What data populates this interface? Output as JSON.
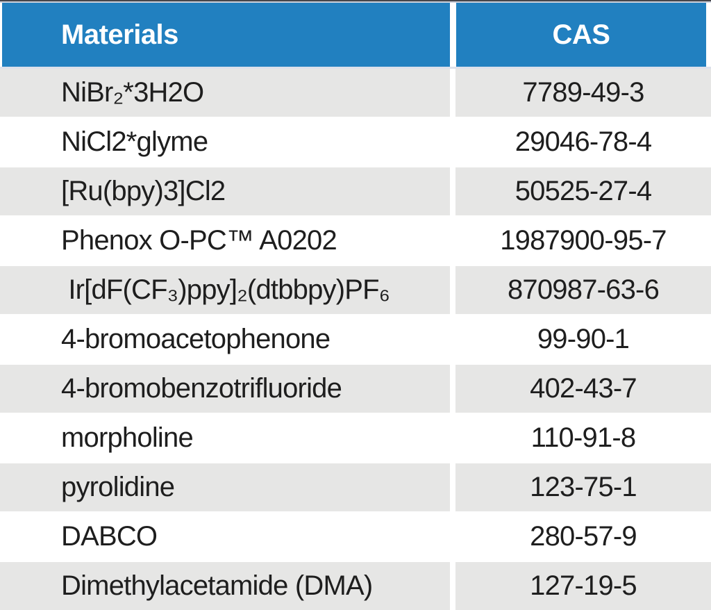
{
  "table": {
    "title": "materials-cas-table",
    "columns": [
      {
        "label": "Materials",
        "align": "left"
      },
      {
        "label": "CAS",
        "align": "center"
      }
    ],
    "rows": [
      {
        "material": "NiBr₂*3H2O",
        "cas": "7789-49-3"
      },
      {
        "material": "NiCl2*glyme",
        "cas": "29046-78-4"
      },
      {
        "material": "[Ru(bpy)3]Cl2",
        "cas": "50525-27-4"
      },
      {
        "material": "Phenox O-PC™ A0202",
        "cas": "1987900-95-7"
      },
      {
        "material": " Ir[dF(CF₃)ppy]₂(dtbbpy)PF₆",
        "cas": "870987-63-6"
      },
      {
        "material": "4-bromoacetophenone",
        "cas": "99-90-1"
      },
      {
        "material": "4-bromobenzotrifluoride",
        "cas": "402-43-7"
      },
      {
        "material": "morpholine",
        "cas": "110-91-8"
      },
      {
        "material": "pyrolidine",
        "cas": "123-75-1"
      },
      {
        "material": "DABCO",
        "cas": "280-57-9"
      },
      {
        "material": "Dimethylacetamide (DMA)",
        "cas": "127-19-5"
      }
    ],
    "colors": {
      "header_bg": "#2180c0",
      "header_text": "#ffffff",
      "row_alt_bg": "#e6e6e5",
      "row_bg": "#ffffff",
      "text": "#1e1e1e",
      "top_border": "#46464b"
    }
  }
}
